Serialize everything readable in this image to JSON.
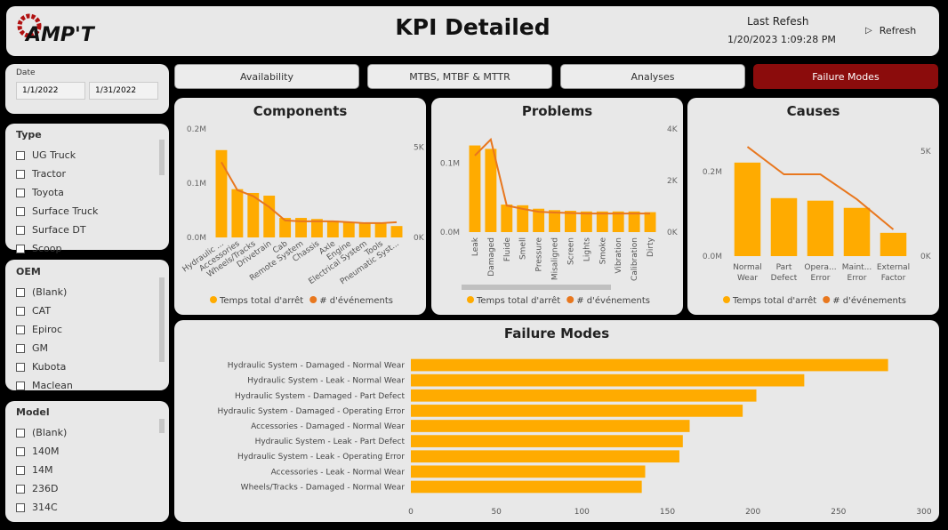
{
  "header": {
    "logo": "AMP'T",
    "title": "KPI Detailed",
    "last_refresh_label": "Last Refesh",
    "last_refresh": "1/20/2023 1:09:28 PM",
    "refresh_button": "Refresh"
  },
  "tabs": [
    "Availability",
    "MTBS, MTBF & MTTR",
    "Analyses",
    "Failure Modes"
  ],
  "active_tab": 3,
  "filters": {
    "date": {
      "label": "Date",
      "start": "1/1/2022",
      "end": "1/31/2022"
    },
    "type": {
      "label": "Type",
      "items": [
        "UG Truck",
        "Tractor",
        "Toyota",
        "Surface Truck",
        "Surface DT",
        "Scoop"
      ]
    },
    "oem": {
      "label": "OEM",
      "items": [
        "(Blank)",
        "CAT",
        "Epiroc",
        "GM",
        "Kubota",
        "Maclean"
      ]
    },
    "model": {
      "label": "Model",
      "items": [
        "(Blank)",
        "140M",
        "14M",
        "236D",
        "314C"
      ]
    }
  },
  "chart_data": [
    {
      "type": "combo",
      "title": "Components",
      "categories": [
        "Hydraulic ...",
        "Accessories",
        "Wheels/Tracks",
        "Drivetrain",
        "Cab",
        "Remote System",
        "Chassis",
        "Axle",
        "Engine",
        "Electrical System",
        "Tools",
        "Pneumatic Syst..."
      ],
      "series": [
        {
          "name": "Temps total d'arrêt",
          "kind": "bar",
          "color": "#ffab00",
          "values": [
            161000,
            89000,
            82000,
            77000,
            36000,
            36000,
            34000,
            31000,
            28000,
            26000,
            26000,
            21000
          ]
        },
        {
          "name": "# d'événements",
          "kind": "line",
          "axis": "y2",
          "color": "#e8771e",
          "values": [
            4160,
            2620,
            2280,
            1680,
            940,
            890,
            890,
            890,
            840,
            790,
            790,
            840
          ]
        }
      ],
      "ylim": [
        0,
        200000
      ],
      "yticks": [
        {
          "value": 0,
          "label": "0.0M"
        },
        {
          "value": 100000,
          "label": "0.1M"
        },
        {
          "value": 200000,
          "label": "0.2M"
        }
      ],
      "y2lim": [
        0,
        6000
      ],
      "y2ticks": [
        {
          "value": 0,
          "label": "0K"
        },
        {
          "value": 5000,
          "label": "5K"
        }
      ],
      "legend": "bottom"
    },
    {
      "type": "combo",
      "title": "Problems",
      "categories": [
        "Leak",
        "Damaged",
        "Fluide",
        "Smell",
        "Pressure",
        "Misaligned",
        "Screen",
        "Lights",
        "Smoke",
        "Vibration",
        "Calibration",
        "Dirty"
      ],
      "series": [
        {
          "name": "Temps total d'arrêt",
          "kind": "bar",
          "color": "#ffab00",
          "values": [
            126000,
            121000,
            40000,
            39000,
            34000,
            32000,
            31000,
            30000,
            30000,
            30000,
            30000,
            29000
          ]
        },
        {
          "name": "# d'événements",
          "kind": "line",
          "axis": "y2",
          "color": "#e8771e",
          "values": [
            2970,
            3590,
            1030,
            900,
            790,
            760,
            740,
            720,
            720,
            720,
            720,
            720
          ]
        }
      ],
      "ylim": [
        0,
        150000
      ],
      "yticks": [
        {
          "value": 0,
          "label": "0.0M"
        },
        {
          "value": 100000,
          "label": "0.1M"
        }
      ],
      "y2lim": [
        0,
        4000
      ],
      "y2ticks": [
        {
          "value": 0,
          "label": "0K"
        },
        {
          "value": 2000,
          "label": "2K"
        },
        {
          "value": 4000,
          "label": "4K"
        }
      ],
      "legend": "bottom"
    },
    {
      "type": "combo",
      "title": "Causes",
      "categories": [
        "Normal Wear",
        "Part Defect",
        "Opera... Error",
        "Maint... Error",
        "External Factor"
      ],
      "series": [
        {
          "name": "Temps total d'arrêt",
          "kind": "bar",
          "color": "#ffab00",
          "values": [
            221000,
            137000,
            131000,
            114000,
            55000
          ]
        },
        {
          "name": "# d'événements",
          "kind": "line",
          "axis": "y2",
          "color": "#e8771e",
          "values": [
            5210,
            3900,
            3900,
            2710,
            1270
          ]
        }
      ],
      "ylim": [
        0,
        290000
      ],
      "yticks": [
        {
          "value": 0,
          "label": "0.0M"
        },
        {
          "value": 200000,
          "label": "0.2M"
        }
      ],
      "y2lim": [
        0,
        5850
      ],
      "y2ticks": [
        {
          "value": 0,
          "label": "0K"
        },
        {
          "value": 5000,
          "label": "5K"
        }
      ],
      "legend": "bottom"
    },
    {
      "type": "hbar",
      "title": "Failure Modes",
      "categories": [
        "Hydraulic System - Damaged - Normal Wear",
        "Hydraulic System - Leak - Normal Wear",
        "Hydraulic System - Damaged - Part Defect",
        "Hydraulic System - Damaged - Operating Error",
        "Accessories - Damaged - Normal Wear",
        "Hydraulic System - Leak - Part Defect",
        "Hydraulic System - Leak - Operating Error",
        "Accessories - Leak - Normal Wear",
        "Wheels/Tracks - Damaged - Normal Wear"
      ],
      "values": [
        279,
        230,
        202,
        194,
        163,
        159,
        157,
        137,
        135
      ],
      "color": "#ffab00",
      "xlim": [
        0,
        300
      ],
      "xticks": [
        0,
        50,
        100,
        150,
        200,
        250,
        300
      ]
    }
  ]
}
